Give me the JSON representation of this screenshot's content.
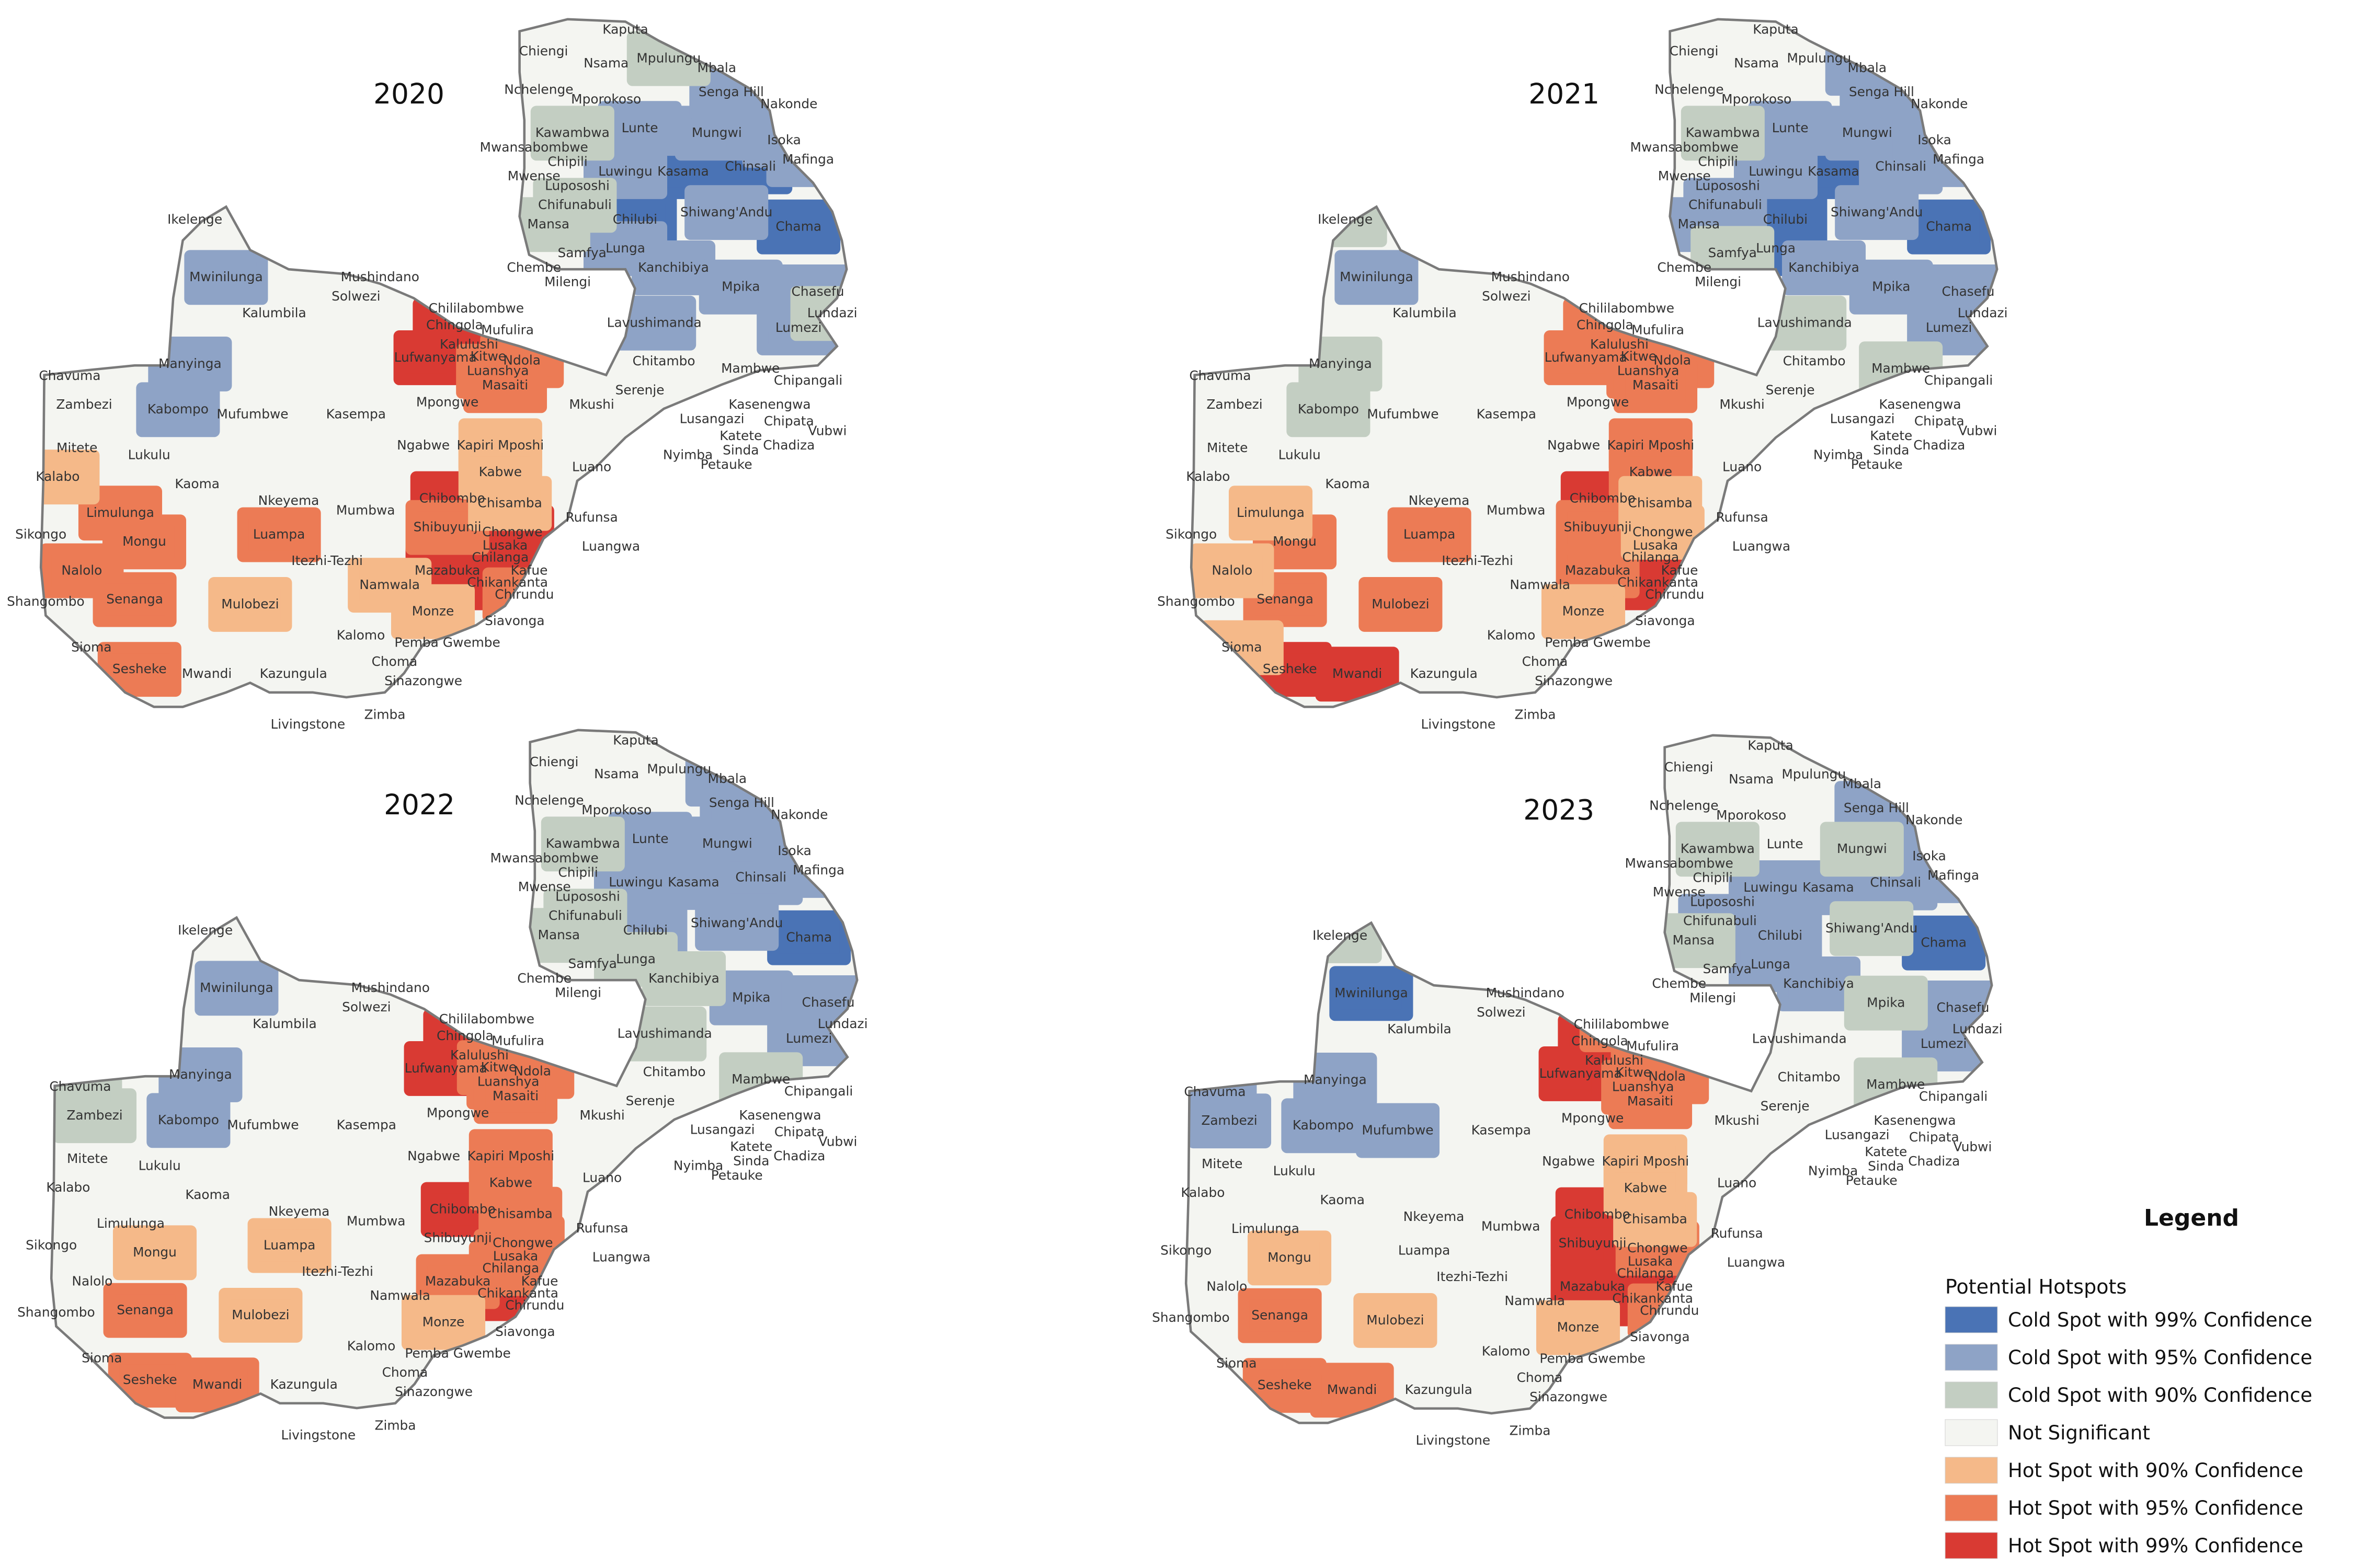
{
  "panels": [
    {
      "year": "2020",
      "regions": [
        {
          "name": "Kasama",
          "cls": "cold99"
        },
        {
          "name": "Chinsali",
          "cls": "cold99"
        },
        {
          "name": "Chama",
          "cls": "cold99"
        },
        {
          "name": "Chilubi",
          "cls": "cold99"
        },
        {
          "name": "Luwingu",
          "cls": "cold95"
        },
        {
          "name": "Lunte",
          "cls": "cold95"
        },
        {
          "name": "Mungwi",
          "cls": "cold95"
        },
        {
          "name": "Isoka",
          "cls": "cold95"
        },
        {
          "name": "Nakonde",
          "cls": "cold95"
        },
        {
          "name": "Senga Hill",
          "cls": "cold95"
        },
        {
          "name": "Mafinga",
          "cls": "cold95"
        },
        {
          "name": "Shiwang'Andu",
          "cls": "cold95"
        },
        {
          "name": "Kanchibiya",
          "cls": "cold95"
        },
        {
          "name": "Mpika",
          "cls": "cold95"
        },
        {
          "name": "Lunga",
          "cls": "cold95"
        },
        {
          "name": "Lavushimanda",
          "cls": "cold95"
        },
        {
          "name": "Lumezi",
          "cls": "cold95"
        },
        {
          "name": "Chasefu",
          "cls": "cold95"
        },
        {
          "name": "Mwinilunga",
          "cls": "cold95"
        },
        {
          "name": "Manyinga",
          "cls": "cold95"
        },
        {
          "name": "Kabompo",
          "cls": "cold95"
        },
        {
          "name": "Mpulungu",
          "cls": "cold90"
        },
        {
          "name": "Kawambwa",
          "cls": "cold90"
        },
        {
          "name": "Chifunabuli",
          "cls": "cold90"
        },
        {
          "name": "Mansa",
          "cls": "cold90"
        },
        {
          "name": "Lundazi",
          "cls": "cold90"
        },
        {
          "name": "Chililabombwe",
          "cls": "hot99"
        },
        {
          "name": "Chingola",
          "cls": "hot99"
        },
        {
          "name": "Kalulushi",
          "cls": "hot99"
        },
        {
          "name": "Lufwanyama",
          "cls": "hot99"
        },
        {
          "name": "Kitwe",
          "cls": "hot99"
        },
        {
          "name": "Mufulira",
          "cls": "hot99"
        },
        {
          "name": "Chibombo",
          "cls": "hot99"
        },
        {
          "name": "Chongwe",
          "cls": "hot99"
        },
        {
          "name": "Lusaka",
          "cls": "hot99"
        },
        {
          "name": "Chilanga",
          "cls": "hot99"
        },
        {
          "name": "Kafue",
          "cls": "hot99"
        },
        {
          "name": "Mazabuka",
          "cls": "hot99"
        },
        {
          "name": "Chikankanta",
          "cls": "hot99"
        },
        {
          "name": "Luanshya",
          "cls": "hot95"
        },
        {
          "name": "Ndola",
          "cls": "hot95"
        },
        {
          "name": "Masaiti",
          "cls": "hot95"
        },
        {
          "name": "Limulunga",
          "cls": "hot95"
        },
        {
          "name": "Mongu",
          "cls": "hot95"
        },
        {
          "name": "Luampa",
          "cls": "hot95"
        },
        {
          "name": "Nalolo",
          "cls": "hot95"
        },
        {
          "name": "Senanga",
          "cls": "hot95"
        },
        {
          "name": "Sesheke",
          "cls": "hot95"
        },
        {
          "name": "Shibuyunji",
          "cls": "hot95"
        },
        {
          "name": "Chirundu",
          "cls": "hot95"
        },
        {
          "name": "Kapiri Mposhi",
          "cls": "hot90"
        },
        {
          "name": "Kabwe",
          "cls": "hot90"
        },
        {
          "name": "Kalabo",
          "cls": "hot90"
        },
        {
          "name": "Mulobezi",
          "cls": "hot90"
        },
        {
          "name": "Namwala",
          "cls": "hot90"
        },
        {
          "name": "Monze",
          "cls": "hot90"
        },
        {
          "name": "Chisamba",
          "cls": "hot90"
        }
      ]
    },
    {
      "year": "2021",
      "regions": [
        {
          "name": "Kasama",
          "cls": "cold99"
        },
        {
          "name": "Chilubi",
          "cls": "cold99"
        },
        {
          "name": "Lunga",
          "cls": "cold99"
        },
        {
          "name": "Chama",
          "cls": "cold99"
        },
        {
          "name": "Luwingu",
          "cls": "cold95"
        },
        {
          "name": "Lunte",
          "cls": "cold95"
        },
        {
          "name": "Mungwi",
          "cls": "cold95"
        },
        {
          "name": "Chinsali",
          "cls": "cold95"
        },
        {
          "name": "Isoka",
          "cls": "cold95"
        },
        {
          "name": "Nakonde",
          "cls": "cold95"
        },
        {
          "name": "Senga Hill",
          "cls": "cold95"
        },
        {
          "name": "Mbala",
          "cls": "cold95"
        },
        {
          "name": "Mafinga",
          "cls": "cold95"
        },
        {
          "name": "Shiwang'Andu",
          "cls": "cold95"
        },
        {
          "name": "Kanchibiya",
          "cls": "cold95"
        },
        {
          "name": "Mpika",
          "cls": "cold95"
        },
        {
          "name": "Chifunabuli",
          "cls": "cold95"
        },
        {
          "name": "Mansa",
          "cls": "cold95"
        },
        {
          "name": "Lumezi",
          "cls": "cold95"
        },
        {
          "name": "Chasefu",
          "cls": "cold95"
        },
        {
          "name": "Mwinilunga",
          "cls": "cold95"
        },
        {
          "name": "Kawambwa",
          "cls": "cold90"
        },
        {
          "name": "Samfya",
          "cls": "cold90"
        },
        {
          "name": "Lavushimanda",
          "cls": "cold90"
        },
        {
          "name": "Mambwe",
          "cls": "cold90"
        },
        {
          "name": "Manyinga",
          "cls": "cold90"
        },
        {
          "name": "Kabompo",
          "cls": "cold90"
        },
        {
          "name": "Ikelenge",
          "cls": "cold90"
        },
        {
          "name": "Chililabombwe",
          "cls": "hot99"
        },
        {
          "name": "Kalulushi",
          "cls": "hot99"
        },
        {
          "name": "Kitwe",
          "cls": "hot99"
        },
        {
          "name": "Chibombo",
          "cls": "hot99"
        },
        {
          "name": "Lusaka",
          "cls": "hot99"
        },
        {
          "name": "Chilanga",
          "cls": "hot99"
        },
        {
          "name": "Kafue",
          "cls": "hot99"
        },
        {
          "name": "Chikankanta",
          "cls": "hot99"
        },
        {
          "name": "Sesheke",
          "cls": "hot99"
        },
        {
          "name": "Mwandi",
          "cls": "hot99"
        },
        {
          "name": "Chingola",
          "cls": "hot95"
        },
        {
          "name": "Lufwanyama",
          "cls": "hot95"
        },
        {
          "name": "Mufulira",
          "cls": "hot95"
        },
        {
          "name": "Luanshya",
          "cls": "hot95"
        },
        {
          "name": "Ndola",
          "cls": "hot95"
        },
        {
          "name": "Masaiti",
          "cls": "hot95"
        },
        {
          "name": "Kapiri Mposhi",
          "cls": "hot95"
        },
        {
          "name": "Kabwe",
          "cls": "hot95"
        },
        {
          "name": "Mongu",
          "cls": "hot95"
        },
        {
          "name": "Luampa",
          "cls": "hot95"
        },
        {
          "name": "Senanga",
          "cls": "hot95"
        },
        {
          "name": "Mulobezi",
          "cls": "hot95"
        },
        {
          "name": "Mazabuka",
          "cls": "hot95"
        },
        {
          "name": "Shibuyunji",
          "cls": "hot95"
        },
        {
          "name": "Chisamba",
          "cls": "hot90"
        },
        {
          "name": "Chongwe",
          "cls": "hot90"
        },
        {
          "name": "Limulunga",
          "cls": "hot90"
        },
        {
          "name": "Nalolo",
          "cls": "hot90"
        },
        {
          "name": "Sioma",
          "cls": "hot90"
        },
        {
          "name": "Monze",
          "cls": "hot90"
        },
        {
          "name": "Livingstone",
          "cls": "hot90"
        }
      ]
    },
    {
      "year": "2022",
      "regions": [
        {
          "name": "Chama",
          "cls": "cold99"
        },
        {
          "name": "Lunte",
          "cls": "cold95"
        },
        {
          "name": "Mungwi",
          "cls": "cold95"
        },
        {
          "name": "Kasama",
          "cls": "cold95"
        },
        {
          "name": "Chinsali",
          "cls": "cold95"
        },
        {
          "name": "Isoka",
          "cls": "cold95"
        },
        {
          "name": "Nakonde",
          "cls": "cold95"
        },
        {
          "name": "Senga Hill",
          "cls": "cold95"
        },
        {
          "name": "Mbala",
          "cls": "cold95"
        },
        {
          "name": "Mafinga",
          "cls": "cold95"
        },
        {
          "name": "Shiwang'Andu",
          "cls": "cold95"
        },
        {
          "name": "Luwingu",
          "cls": "cold95"
        },
        {
          "name": "Chilubi",
          "cls": "cold95"
        },
        {
          "name": "Mpika",
          "cls": "cold95"
        },
        {
          "name": "Lumezi",
          "cls": "cold95"
        },
        {
          "name": "Chasefu",
          "cls": "cold95"
        },
        {
          "name": "Lundazi",
          "cls": "cold95"
        },
        {
          "name": "Mwinilunga",
          "cls": "cold95"
        },
        {
          "name": "Manyinga",
          "cls": "cold95"
        },
        {
          "name": "Kabompo",
          "cls": "cold95"
        },
        {
          "name": "Kawambwa",
          "cls": "cold90"
        },
        {
          "name": "Chifunabuli",
          "cls": "cold90"
        },
        {
          "name": "Mansa",
          "cls": "cold90"
        },
        {
          "name": "Lunga",
          "cls": "cold90"
        },
        {
          "name": "Kanchibiya",
          "cls": "cold90"
        },
        {
          "name": "Lavushimanda",
          "cls": "cold90"
        },
        {
          "name": "Mambwe",
          "cls": "cold90"
        },
        {
          "name": "Zambezi",
          "cls": "cold90"
        },
        {
          "name": "Chavuma",
          "cls": "cold90"
        },
        {
          "name": "Chililabombwe",
          "cls": "hot99"
        },
        {
          "name": "Chingola",
          "cls": "hot99"
        },
        {
          "name": "Kalulushi",
          "cls": "hot99"
        },
        {
          "name": "Lufwanyama",
          "cls": "hot99"
        },
        {
          "name": "Chibombo",
          "cls": "hot99"
        },
        {
          "name": "Kafue",
          "cls": "hot99"
        },
        {
          "name": "Chikankanta",
          "cls": "hot99"
        },
        {
          "name": "Mufulira",
          "cls": "hot95"
        },
        {
          "name": "Kitwe",
          "cls": "hot95"
        },
        {
          "name": "Ndola",
          "cls": "hot95"
        },
        {
          "name": "Luanshya",
          "cls": "hot95"
        },
        {
          "name": "Masaiti",
          "cls": "hot95"
        },
        {
          "name": "Kapiri Mposhi",
          "cls": "hot95"
        },
        {
          "name": "Kabwe",
          "cls": "hot95"
        },
        {
          "name": "Chisamba",
          "cls": "hot95"
        },
        {
          "name": "Chongwe",
          "cls": "hot95"
        },
        {
          "name": "Lusaka",
          "cls": "hot95"
        },
        {
          "name": "Chilanga",
          "cls": "hot95"
        },
        {
          "name": "Mazabuka",
          "cls": "hot95"
        },
        {
          "name": "Senanga",
          "cls": "hot95"
        },
        {
          "name": "Sesheke",
          "cls": "hot95"
        },
        {
          "name": "Mwandi",
          "cls": "hot95"
        },
        {
          "name": "Livingstone",
          "cls": "hot95"
        },
        {
          "name": "Mongu",
          "cls": "hot90"
        },
        {
          "name": "Luampa",
          "cls": "hot90"
        },
        {
          "name": "Mulobezi",
          "cls": "hot90"
        },
        {
          "name": "Monze",
          "cls": "hot90"
        }
      ]
    },
    {
      "year": "2023",
      "regions": [
        {
          "name": "Chama",
          "cls": "cold99"
        },
        {
          "name": "Mwinilunga",
          "cls": "cold99"
        },
        {
          "name": "Nakonde",
          "cls": "cold95"
        },
        {
          "name": "Senga Hill",
          "cls": "cold95"
        },
        {
          "name": "Isoka",
          "cls": "cold95"
        },
        {
          "name": "Chinsali",
          "cls": "cold95"
        },
        {
          "name": "Mafinga",
          "cls": "cold95"
        },
        {
          "name": "Kasama",
          "cls": "cold95"
        },
        {
          "name": "Luwingu",
          "cls": "cold95"
        },
        {
          "name": "Chilubi",
          "cls": "cold95"
        },
        {
          "name": "Chifunabuli",
          "cls": "cold95"
        },
        {
          "name": "Lunga",
          "cls": "cold95"
        },
        {
          "name": "Kanchibiya",
          "cls": "cold95"
        },
        {
          "name": "Lumezi",
          "cls": "cold95"
        },
        {
          "name": "Chasefu",
          "cls": "cold95"
        },
        {
          "name": "Manyinga",
          "cls": "cold95"
        },
        {
          "name": "Kabompo",
          "cls": "cold95"
        },
        {
          "name": "Zambezi",
          "cls": "cold95"
        },
        {
          "name": "Chavuma",
          "cls": "cold95"
        },
        {
          "name": "Mufumbwe",
          "cls": "cold95"
        },
        {
          "name": "Mungwi",
          "cls": "cold90"
        },
        {
          "name": "Kawambwa",
          "cls": "cold90"
        },
        {
          "name": "Mansa",
          "cls": "cold90"
        },
        {
          "name": "Shiwang'Andu",
          "cls": "cold90"
        },
        {
          "name": "Mpika",
          "cls": "cold90"
        },
        {
          "name": "Mambwe",
          "cls": "cold90"
        },
        {
          "name": "Ikelenge",
          "cls": "cold90"
        },
        {
          "name": "Chingola",
          "cls": "hot99"
        },
        {
          "name": "Kalulushi",
          "cls": "hot99"
        },
        {
          "name": "Lufwanyama",
          "cls": "hot99"
        },
        {
          "name": "Kitwe",
          "cls": "hot99"
        },
        {
          "name": "Chibombo",
          "cls": "hot99"
        },
        {
          "name": "Shibuyunji",
          "cls": "hot99"
        },
        {
          "name": "Lusaka",
          "cls": "hot99"
        },
        {
          "name": "Chilanga",
          "cls": "hot99"
        },
        {
          "name": "Kafue",
          "cls": "hot99"
        },
        {
          "name": "Mazabuka",
          "cls": "hot99"
        },
        {
          "name": "Chikankanta",
          "cls": "hot99"
        },
        {
          "name": "Chililabombwe",
          "cls": "hot95"
        },
        {
          "name": "Mufulira",
          "cls": "hot95"
        },
        {
          "name": "Ndola",
          "cls": "hot95"
        },
        {
          "name": "Luanshya",
          "cls": "hot95"
        },
        {
          "name": "Masaiti",
          "cls": "hot95"
        },
        {
          "name": "Chongwe",
          "cls": "hot95"
        },
        {
          "name": "Chirundu",
          "cls": "hot95"
        },
        {
          "name": "Senanga",
          "cls": "hot95"
        },
        {
          "name": "Sesheke",
          "cls": "hot95"
        },
        {
          "name": "Mwandi",
          "cls": "hot95"
        },
        {
          "name": "Kapiri Mposhi",
          "cls": "hot90"
        },
        {
          "name": "Kabwe",
          "cls": "hot90"
        },
        {
          "name": "Chisamba",
          "cls": "hot90"
        },
        {
          "name": "Mongu",
          "cls": "hot90"
        },
        {
          "name": "Mulobezi",
          "cls": "hot90"
        },
        {
          "name": "Monze",
          "cls": "hot90"
        },
        {
          "name": "Livingstone",
          "cls": "hot90"
        }
      ]
    }
  ],
  "legend": {
    "title": "Legend",
    "subtitle": "Potential Hotspots",
    "items": [
      {
        "key": "cold99",
        "label": "Cold Spot with 99% Confidence",
        "color": "#4a73b5"
      },
      {
        "key": "cold95",
        "label": "Cold Spot with 95% Confidence",
        "color": "#8ea3c6"
      },
      {
        "key": "cold90",
        "label": "Cold Spot with 90% Confidence",
        "color": "#c3cec2"
      },
      {
        "key": "ns",
        "label": "Not Significant",
        "color": "#f4f5f1"
      },
      {
        "key": "hot90",
        "label": "Hot Spot with 90% Confidence",
        "color": "#f5b989"
      },
      {
        "key": "hot95",
        "label": "Hot Spot with 95% Confidence",
        "color": "#ec7b55"
      },
      {
        "key": "hot99",
        "label": "Hot Spot with 99% Confidence",
        "color": "#d93a33"
      }
    ]
  }
}
